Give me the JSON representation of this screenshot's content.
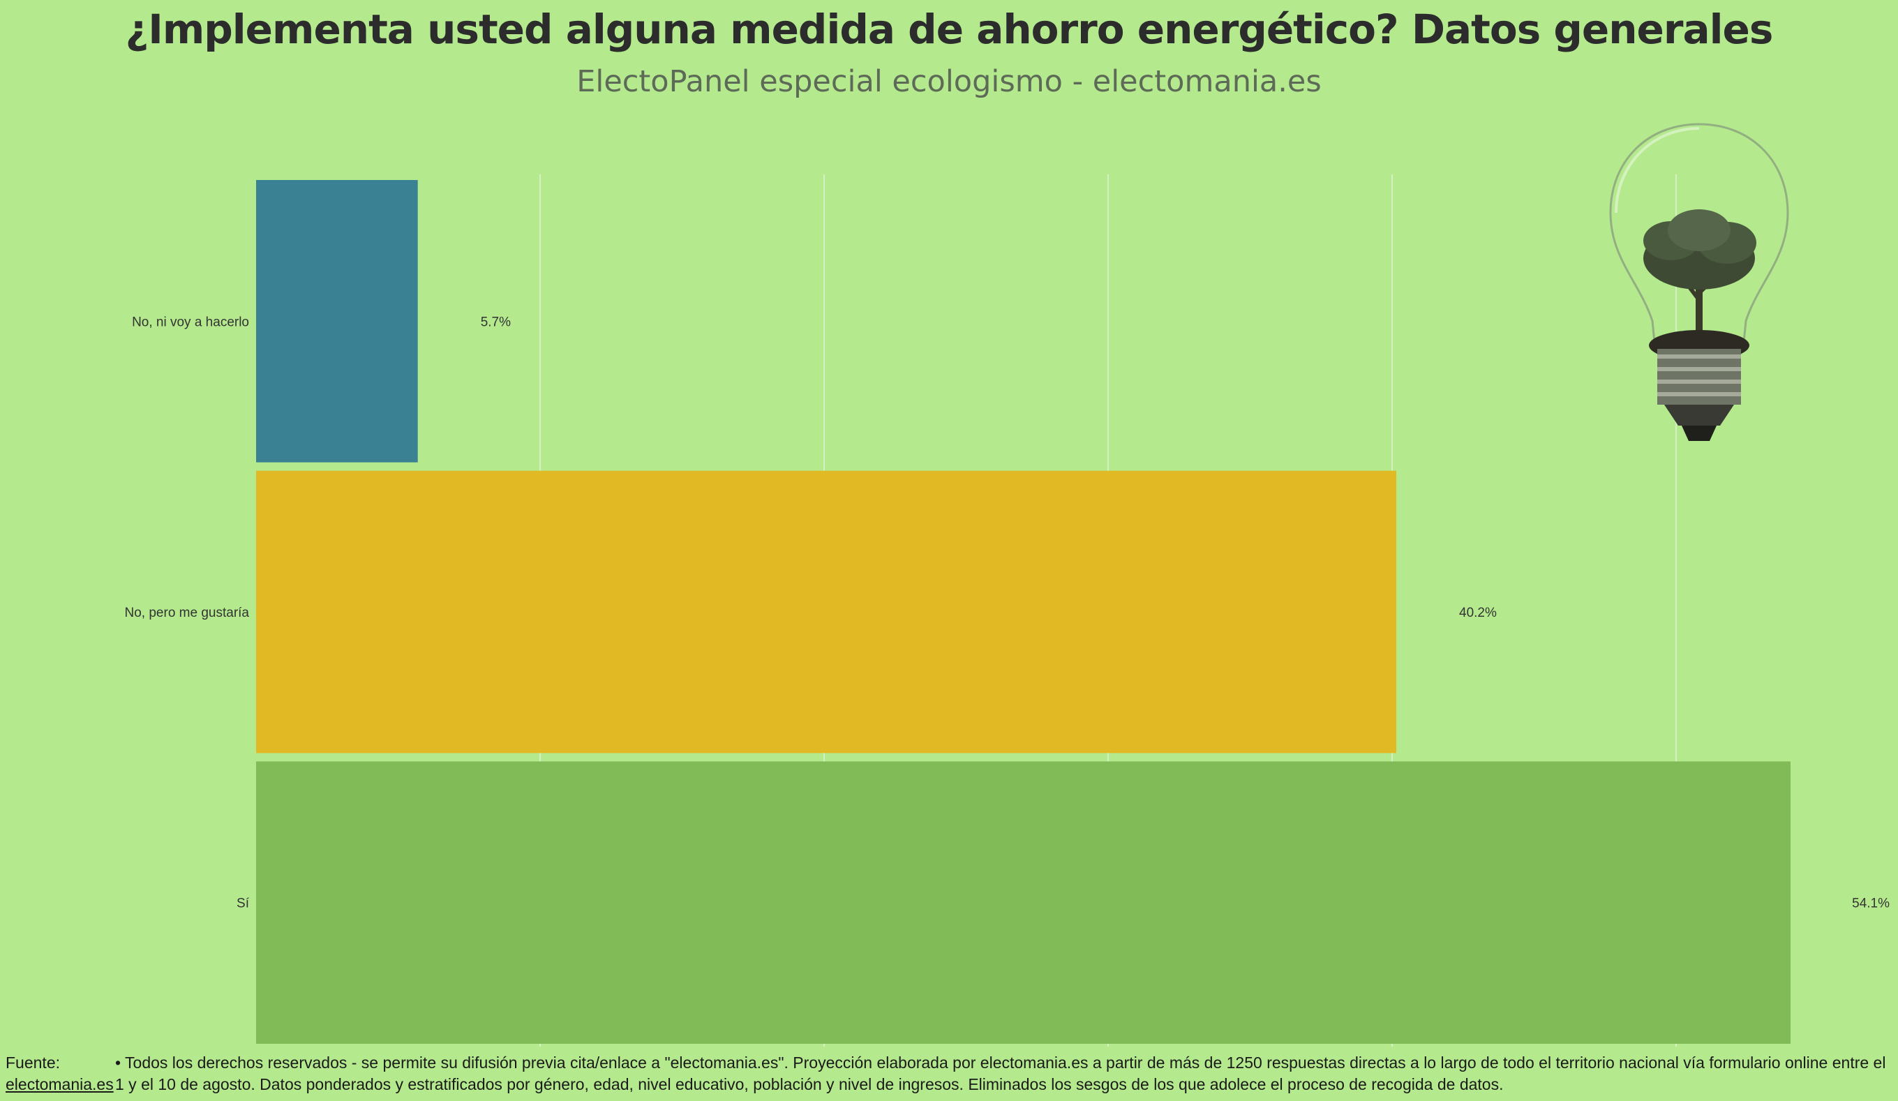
{
  "chart_data": {
    "type": "bar",
    "orientation": "horizontal",
    "title": "¿Implementa usted alguna medida de ahorro energético? Datos generales",
    "subtitle": "ElectoPanel especial ecologismo - electomania.es",
    "categories": [
      "No, ni voy a hacerlo",
      "No, pero me gustaría",
      "Sí"
    ],
    "values": [
      5.7,
      40.2,
      54.1
    ],
    "value_labels": [
      "5.7%",
      "40.2%",
      "54.1%"
    ],
    "colors": [
      "#3a8194",
      "#e0b924",
      "#80bb57"
    ],
    "xlim": [
      0,
      60
    ],
    "grid": true,
    "legend": "none"
  },
  "footer": {
    "label": "Fuente:",
    "link": "electomania.es",
    "text": "• Todos los derechos reservados - se permite su difusión previa cita/enlace a \"electomania.es\". Proyección elaborada por electomania.es a partir de más de 1250 respuestas directas a lo largo de todo el territorio nacional vía formulario online entre el 1 y el 10 de agosto. Datos ponderados y estratificados por género, edad, nivel educativo, población y nivel de ingresos. Eliminados los sesgos de los que adolece el proceso de recogida de datos."
  },
  "decoration": {
    "icon": "lightbulb-tree-icon"
  },
  "colors": {
    "background": "#b4ea8d",
    "gridline": "#d6f0c5"
  }
}
